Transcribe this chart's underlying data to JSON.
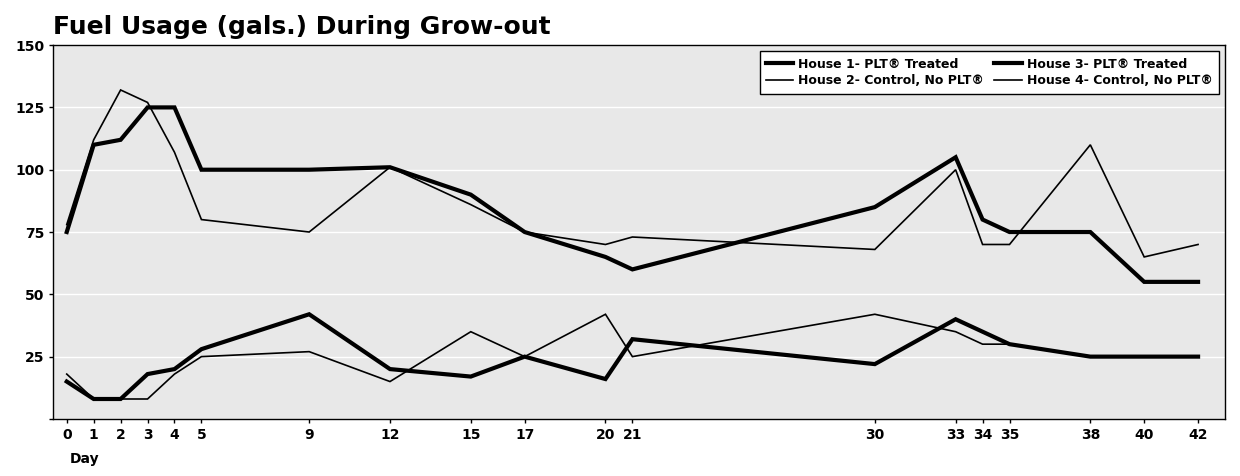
{
  "title": "Fuel Usage (gals.) During Grow-out",
  "xlabel": "Day",
  "ylim": [
    0,
    150
  ],
  "yticks": [
    0,
    25,
    50,
    75,
    100,
    125,
    150
  ],
  "days": [
    0,
    1,
    2,
    3,
    4,
    5,
    9,
    12,
    15,
    17,
    20,
    21,
    30,
    33,
    34,
    35,
    38,
    40,
    42
  ],
  "house1": [
    75,
    110,
    112,
    125,
    125,
    100,
    100,
    101,
    90,
    75,
    65,
    60,
    85,
    105,
    80,
    75,
    75,
    55,
    55
  ],
  "house2": [
    78,
    112,
    132,
    127,
    107,
    80,
    75,
    101,
    86,
    75,
    70,
    73,
    68,
    100,
    70,
    70,
    110,
    65,
    70
  ],
  "house3": [
    15,
    8,
    8,
    18,
    20,
    28,
    42,
    20,
    17,
    25,
    16,
    32,
    22,
    40,
    35,
    30,
    25,
    25,
    25
  ],
  "house4": [
    18,
    8,
    8,
    8,
    18,
    25,
    27,
    15,
    35,
    25,
    42,
    25,
    42,
    35,
    30,
    30,
    25,
    25,
    25
  ],
  "legend_row1": [
    "House 1- PLT® Treated",
    "House 2- Control, No PLT®"
  ],
  "legend_row2": [
    "House 3- PLT® Treated",
    "House 4- Control, No PLT®"
  ],
  "lw_thick": 3.0,
  "lw_thin": 1.2,
  "plot_bg": "#e8e8e8",
  "fig_bg": "#ffffff",
  "grid_color": "#ffffff",
  "title_fontsize": 18,
  "tick_fontsize": 10,
  "legend_fontsize": 9
}
